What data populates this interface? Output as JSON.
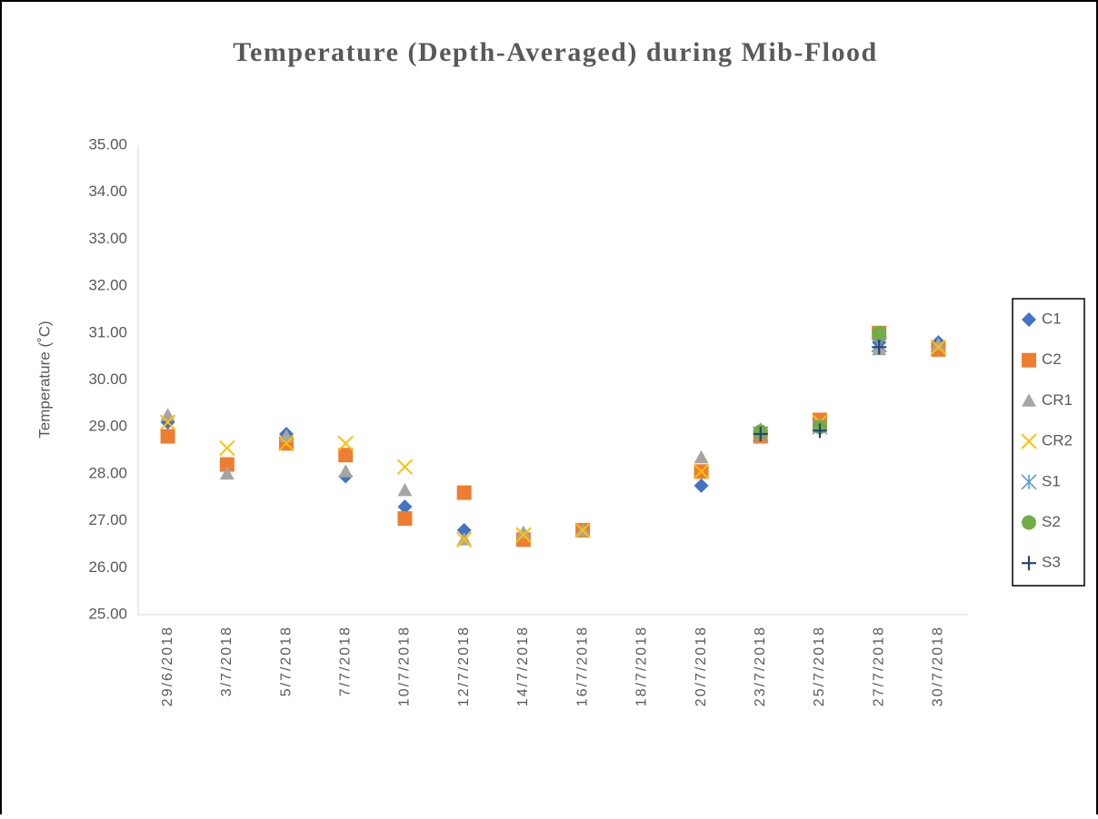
{
  "chart_data": {
    "type": "scatter",
    "title": "Temperature (Depth-Averaged) during Mib-Flood",
    "y_label": "Temperature (˚C)",
    "categories": [
      "29/6/2018",
      "3/7/2018",
      "5/7/2018",
      "7/7/2018",
      "10/7/2018",
      "12/7/2018",
      "14/7/2018",
      "16/7/2018",
      "18/7/2018",
      "20/7/2018",
      "23/7/2018",
      "25/7/2018",
      "27/7/2018",
      "30/7/2018"
    ],
    "series": [
      {
        "name": "C1",
        "color": "#4472c4",
        "marker": "diamond",
        "values": [
          29.1,
          28.2,
          28.85,
          27.95,
          27.3,
          26.8,
          26.65,
          26.8,
          null,
          27.75,
          28.85,
          29.1,
          30.8,
          30.8
        ]
      },
      {
        "name": "C2",
        "color": "#ed7d31",
        "marker": "square",
        "values": [
          28.8,
          28.2,
          28.65,
          28.4,
          27.05,
          27.6,
          26.6,
          26.8,
          null,
          28.05,
          28.8,
          29.15,
          31.0,
          30.65
        ]
      },
      {
        "name": "CR1",
        "color": "#a5a5a5",
        "marker": "triangle",
        "values": [
          29.25,
          28.0,
          28.8,
          28.05,
          27.65,
          26.6,
          26.75,
          26.8,
          null,
          28.35,
          28.95,
          29.05,
          30.65,
          30.75
        ]
      },
      {
        "name": "CR2",
        "color": "#ffc000",
        "marker": "x",
        "values": [
          29.1,
          28.55,
          28.65,
          28.65,
          28.15,
          26.6,
          26.7,
          26.8,
          null,
          28.05,
          28.85,
          29.1,
          30.75,
          30.7
        ]
      },
      {
        "name": "S1",
        "color": "#5b9bd5",
        "marker": "star",
        "values": [
          null,
          null,
          null,
          null,
          null,
          null,
          null,
          null,
          null,
          null,
          28.85,
          29.0,
          30.75,
          null
        ]
      },
      {
        "name": "S2",
        "color": "#70ad47",
        "marker": "circle",
        "values": [
          null,
          null,
          null,
          null,
          null,
          null,
          null,
          null,
          null,
          null,
          28.9,
          29.0,
          31.0,
          null
        ]
      },
      {
        "name": "S3",
        "color": "#264478",
        "marker": "plus",
        "values": [
          null,
          null,
          null,
          null,
          null,
          null,
          null,
          null,
          null,
          null,
          28.85,
          28.92,
          30.7,
          null
        ]
      }
    ],
    "ylim": [
      25,
      35
    ],
    "yticks": [
      {
        "value": 25,
        "label": "25.00"
      },
      {
        "value": 26,
        "label": "26.00"
      },
      {
        "value": 27,
        "label": "27.00"
      },
      {
        "value": 28,
        "label": "28.00"
      },
      {
        "value": 29,
        "label": "29.00"
      },
      {
        "value": 30,
        "label": "30.00"
      },
      {
        "value": 31,
        "label": "31.00"
      },
      {
        "value": 32,
        "label": "32.00"
      },
      {
        "value": 33,
        "label": "33.00"
      },
      {
        "value": 34,
        "label": "34.00"
      },
      {
        "value": 35,
        "label": "35.00"
      }
    ],
    "grid": false,
    "legend": "right"
  }
}
